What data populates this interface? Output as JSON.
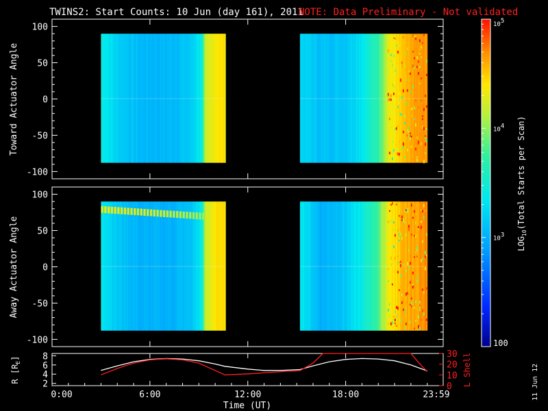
{
  "title": {
    "main": "TWINS2: Start Counts: 10 Jun (day 161), 2011",
    "note": "NOTE: Data Preliminary - Not validated"
  },
  "colors": {
    "background": "#000000",
    "note": "#ff0000",
    "axes": "#ffffff",
    "r_line": "#ffffff",
    "lshell_line": "#ff2020"
  },
  "date_stamp": "11 Jun 12",
  "chart_data": [
    {
      "type": "heatmap",
      "name": "toward",
      "ylabel": "Toward Actuator Angle",
      "ylim": [
        -110,
        110
      ],
      "yticks": [
        100,
        50,
        0,
        -50,
        -100
      ],
      "xlim": [
        0,
        23.98
      ],
      "data_blocks": [
        {
          "x": [
            3.0,
            10.6
          ],
          "y": [
            -88,
            90
          ]
        },
        {
          "x": [
            15.2,
            23.0
          ],
          "y": [
            -88,
            90
          ]
        }
      ],
      "log10_levels": [
        {
          "x": 3.0,
          "v": 3.45
        },
        {
          "x": 4.0,
          "v": 3.2
        },
        {
          "x": 5.5,
          "v": 3.05
        },
        {
          "x": 7.0,
          "v": 3.05
        },
        {
          "x": 8.5,
          "v": 3.15
        },
        {
          "x": 9.2,
          "v": 3.45
        },
        {
          "x": 9.4,
          "v": 4.15
        },
        {
          "x": 10.0,
          "v": 4.4
        },
        {
          "x": 10.6,
          "v": 4.4
        },
        {
          "x": 15.2,
          "v": 3.25
        },
        {
          "x": 16.5,
          "v": 3.1
        },
        {
          "x": 18.0,
          "v": 3.15
        },
        {
          "x": 19.0,
          "v": 3.35
        },
        {
          "x": 20.0,
          "v": 3.7
        },
        {
          "x": 20.6,
          "v": 4.3
        },
        {
          "x": 21.5,
          "v": 4.55
        },
        {
          "x": 23.0,
          "v": 4.7
        }
      ]
    },
    {
      "type": "heatmap",
      "name": "away",
      "ylabel": "Away Actuator Angle",
      "ylim": [
        -110,
        110
      ],
      "yticks": [
        100,
        50,
        0,
        -50,
        -100
      ],
      "xlim": [
        0,
        23.98
      ],
      "data_blocks": [
        {
          "x": [
            3.0,
            10.6
          ],
          "y": [
            -88,
            90
          ]
        },
        {
          "x": [
            15.2,
            23.0
          ],
          "y": [
            -88,
            90
          ]
        }
      ],
      "log10_levels": [
        {
          "x": 3.0,
          "v": 3.4
        },
        {
          "x": 4.0,
          "v": 3.15
        },
        {
          "x": 5.5,
          "v": 3.0
        },
        {
          "x": 7.0,
          "v": 3.0
        },
        {
          "x": 8.5,
          "v": 3.1
        },
        {
          "x": 9.2,
          "v": 3.4
        },
        {
          "x": 9.4,
          "v": 4.2
        },
        {
          "x": 10.0,
          "v": 4.4
        },
        {
          "x": 10.6,
          "v": 4.4
        },
        {
          "x": 15.2,
          "v": 3.4
        },
        {
          "x": 16.5,
          "v": 3.0
        },
        {
          "x": 18.0,
          "v": 3.15
        },
        {
          "x": 19.0,
          "v": 3.4
        },
        {
          "x": 20.0,
          "v": 3.8
        },
        {
          "x": 20.6,
          "v": 4.35
        },
        {
          "x": 21.5,
          "v": 4.55
        },
        {
          "x": 23.0,
          "v": 4.7
        }
      ]
    },
    {
      "type": "line",
      "name": "orbit",
      "ylabel_left": "R [R",
      "ylabel_left_sub": "E",
      "ylabel_left_close": "]",
      "ylabel_right": "L Shell",
      "ylim_left": [
        1.5,
        8.5
      ],
      "yticks_left": [
        2,
        4,
        6,
        8
      ],
      "ylim_right": [
        0,
        30
      ],
      "yticks_right": [
        0,
        10,
        20,
        30
      ],
      "xlabel": "Time (UT)",
      "xticks": [
        {
          "value": 0,
          "label": "0:00"
        },
        {
          "value": 6,
          "label": "6:00"
        },
        {
          "value": 12,
          "label": "12:00"
        },
        {
          "value": 18,
          "label": "18:00"
        },
        {
          "value": 23.98,
          "label": "23:59"
        }
      ],
      "series": [
        {
          "axis": "left",
          "x": [
            3.0,
            4.0,
            5.0,
            6.0,
            7.0,
            8.0,
            9.0,
            10.0,
            10.6,
            12.0,
            13.0,
            14.0,
            15.2,
            16.0,
            17.0,
            18.0,
            19.0,
            20.0,
            21.0,
            22.0,
            23.0
          ],
          "y": [
            4.8,
            5.8,
            6.7,
            7.2,
            7.4,
            7.3,
            6.9,
            6.2,
            5.7,
            5.1,
            4.8,
            4.8,
            5.0,
            5.8,
            6.7,
            7.2,
            7.4,
            7.3,
            6.9,
            6.0,
            4.7
          ]
        },
        {
          "axis": "right",
          "x": [
            3.0,
            4.0,
            5.0,
            6.0,
            7.0,
            8.0,
            9.0,
            10.6,
            12.0,
            14.0,
            15.2,
            16.0,
            16.6,
            22.0,
            22.5,
            23.0
          ],
          "y": [
            10.0,
            16.0,
            21.0,
            24.0,
            25.0,
            24.0,
            21.0,
            10.0,
            11.0,
            13.0,
            14.0,
            21.0,
            30.0,
            30.0,
            21.0,
            13.0
          ]
        }
      ]
    },
    {
      "type": "colorbar",
      "label_prefix": "LOG",
      "label_sub": "10",
      "label_suffix": "(Total Starts per Scan)",
      "scale": "log",
      "range": [
        100,
        100000
      ],
      "ticks": [
        {
          "value": 100,
          "label_text": "100",
          "mant": "",
          "exp": ""
        },
        {
          "value": 1000,
          "label_text": "",
          "mant": "10",
          "exp": "3"
        },
        {
          "value": 10000,
          "label_text": "",
          "mant": "10",
          "exp": "4"
        },
        {
          "value": 100000,
          "label_text": "",
          "mant": "10",
          "exp": "5"
        }
      ]
    }
  ]
}
